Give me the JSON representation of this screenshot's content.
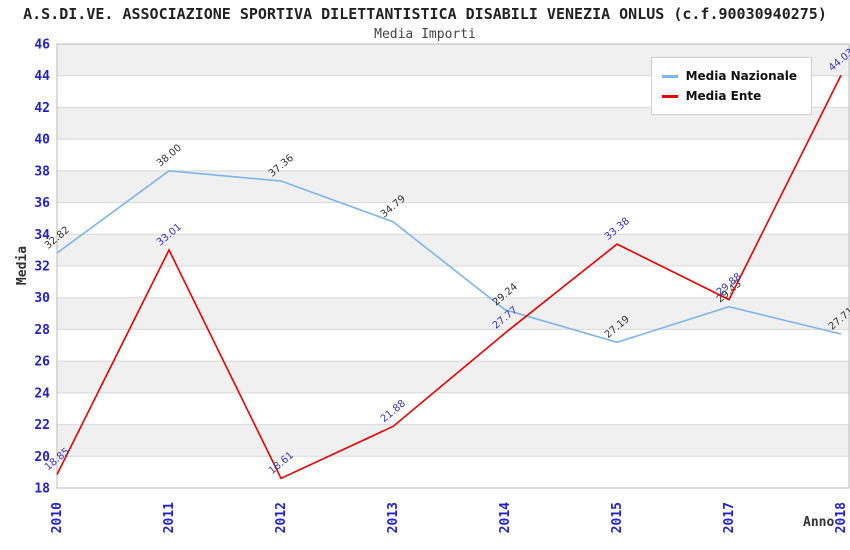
{
  "header": {
    "title": "A.S.DI.VE. ASSOCIAZIONE SPORTIVA DILETTANTISTICA DISABILI VENEZIA ONLUS (c.f.90030940275)",
    "subtitle": "Media Importi"
  },
  "chart_data": {
    "type": "line",
    "title": "Media Importi",
    "categories": [
      "2010",
      "2011",
      "2012",
      "2013",
      "2014",
      "2015",
      "2017",
      "2018"
    ],
    "series": [
      {
        "name": "Media Nazionale",
        "color": "#7cb5ec",
        "label_color": "#333333",
        "values": [
          32.82,
          38.0,
          37.36,
          34.79,
          29.24,
          27.19,
          29.43,
          27.71
        ]
      },
      {
        "name": "Media Ente",
        "color": "#ee0000",
        "label_color": "#3333bb",
        "values": [
          18.85,
          33.01,
          18.61,
          21.88,
          27.77,
          33.38,
          29.88,
          44.03
        ]
      }
    ],
    "xlabel": "Anno",
    "ylabel": "Media",
    "ylim": [
      18,
      46
    ],
    "ytick_step": 2,
    "grid": true,
    "legend_position": "top-right",
    "colors": {
      "axis_text": "#2222cc",
      "band": "#f0f0f0",
      "band_alt": "#ffffff",
      "gridline": "#d8d8d8",
      "border": "#b8b8b8"
    }
  }
}
